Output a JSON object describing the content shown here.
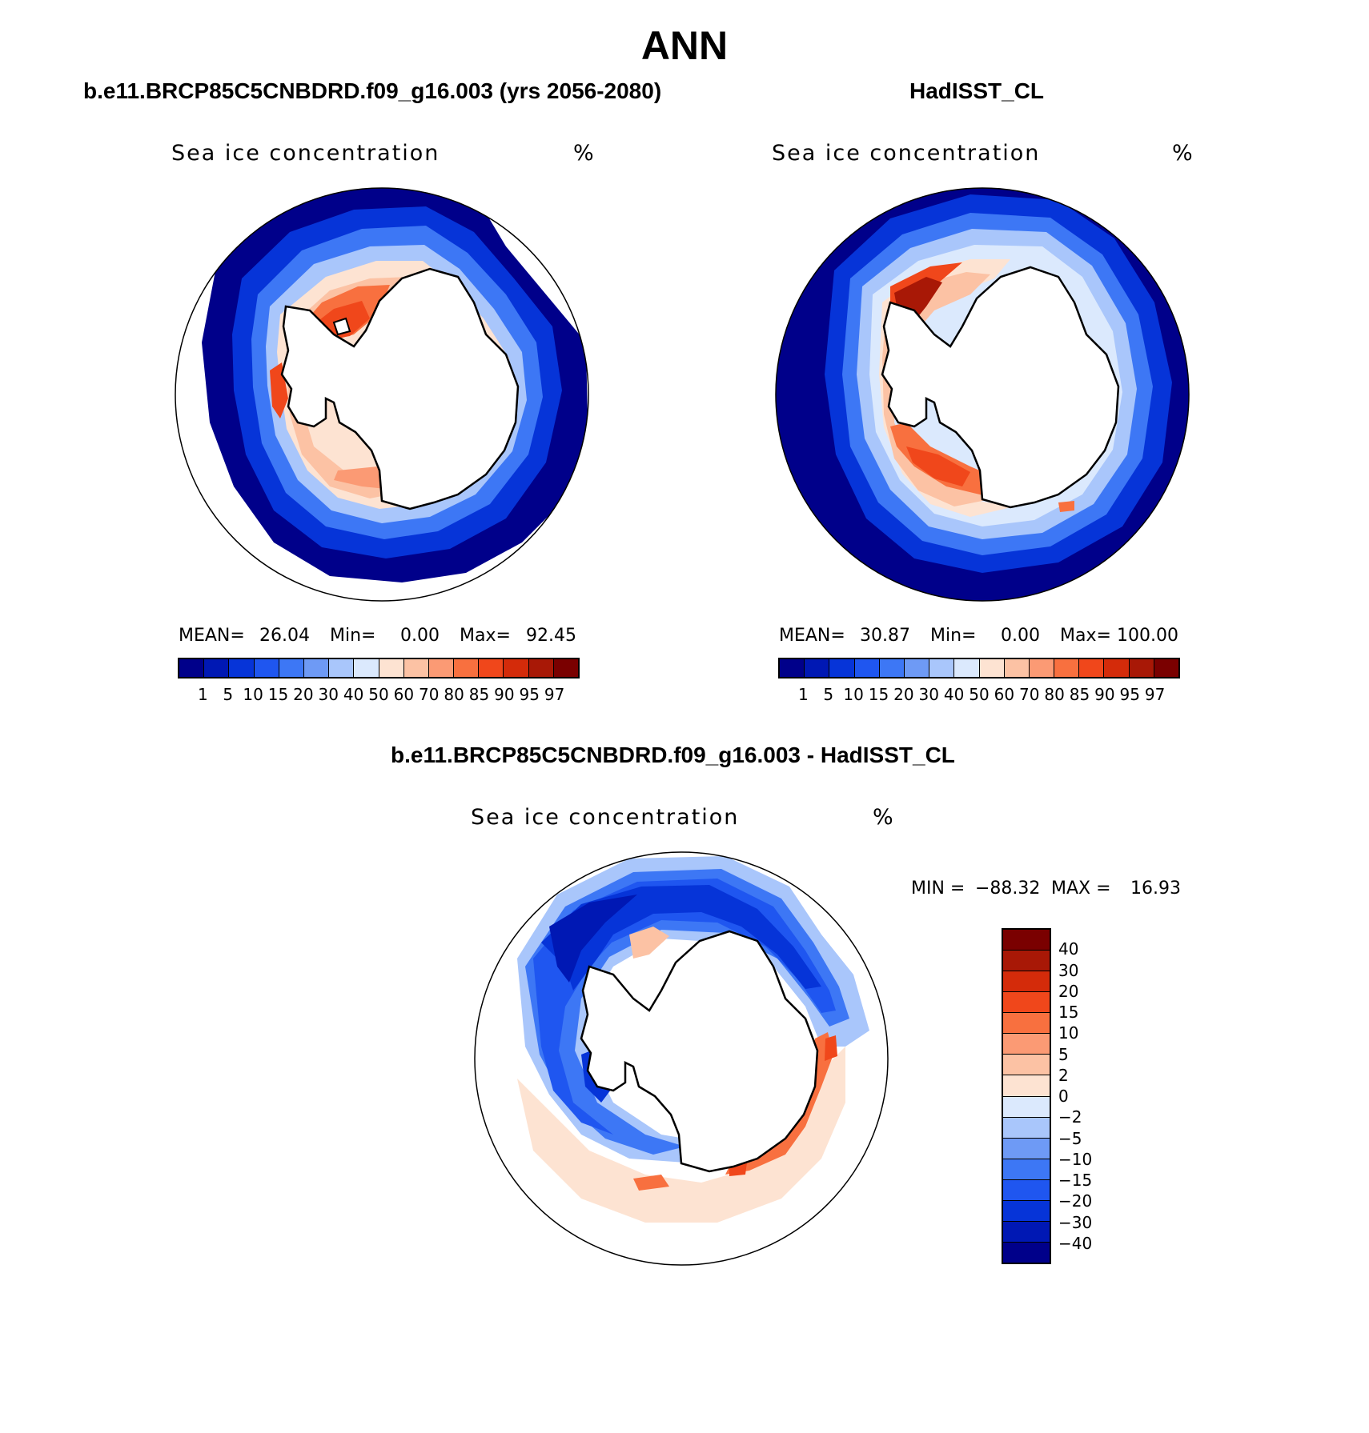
{
  "title": "ANN",
  "panels": [
    {
      "id": "model",
      "subtitle": "b.e11.BRCP85C5CNBDRD.f09_g16.003 (yrs 2056-2080)",
      "label": "Sea ice concentration",
      "units": "%",
      "stats": {
        "mean_label": "MEAN=",
        "mean": "26.04",
        "min_label": "Min=",
        "min": "0.00",
        "max_label": "Max=",
        "max": "92.45"
      }
    },
    {
      "id": "obs",
      "subtitle": "HadISST_CL",
      "label": "Sea ice concentration",
      "units": "%",
      "stats": {
        "mean_label": "MEAN=",
        "mean": "30.87",
        "min_label": "Min=",
        "min": "0.00",
        "max_label": "Max=",
        "max": "100.00"
      }
    },
    {
      "id": "diff",
      "subtitle": "b.e11.BRCP85C5CNBDRD.f09_g16.003 - HadISST_CL",
      "label": "Sea ice concentration",
      "units": "%",
      "stats": {
        "min_label": "MIN =",
        "min": "−88.32",
        "max_label": "MAX =",
        "max": "16.93"
      }
    }
  ],
  "colorbar_concentration": {
    "levels": [
      "1",
      "5",
      "10",
      "15",
      "20",
      "30",
      "40",
      "50",
      "60",
      "70",
      "80",
      "85",
      "90",
      "95",
      "97"
    ],
    "colors": [
      "#00008a",
      "#0018b4",
      "#0634d8",
      "#1f56f0",
      "#3d77f5",
      "#6e9af5",
      "#a9c6fb",
      "#dbe9fd",
      "#fde3d2",
      "#fcc2a4",
      "#fb9a74",
      "#f8703f",
      "#f0471b",
      "#d42b0a",
      "#a81806",
      "#7a0000"
    ]
  },
  "colorbar_difference": {
    "levels": [
      "40",
      "30",
      "20",
      "15",
      "10",
      "5",
      "2",
      "0",
      "−2",
      "−5",
      "−10",
      "−15",
      "−20",
      "−30",
      "−40"
    ],
    "colors_top_to_bottom": [
      "#7a0000",
      "#a81806",
      "#d42b0a",
      "#f0471b",
      "#f8703f",
      "#fb9a74",
      "#fcc2a4",
      "#fde3d2",
      "#dbe9fd",
      "#a9c6fb",
      "#6e9af5",
      "#3d77f5",
      "#1f56f0",
      "#0634d8",
      "#0018b4",
      "#00008a"
    ]
  }
}
